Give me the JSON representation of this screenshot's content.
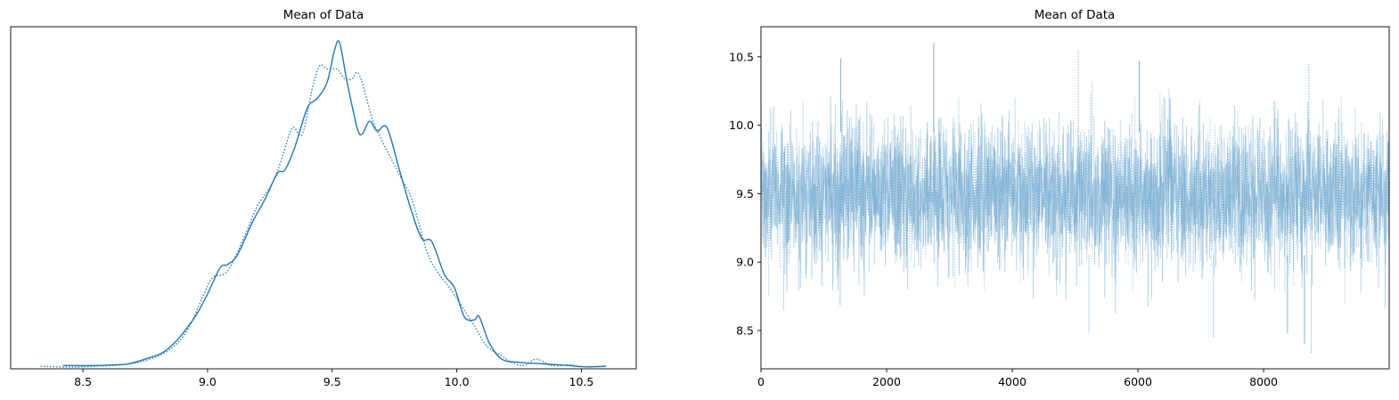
{
  "chart_data": [
    {
      "type": "line",
      "title": "Mean of Data",
      "xlabel": "",
      "ylabel": "",
      "xlim": [
        8.21,
        10.72
      ],
      "ylim": [
        0,
        1.05
      ],
      "y_ticks_visible": false,
      "grid": false,
      "x_ticks": [
        "8.5",
        "9.0",
        "9.5",
        "10.0",
        "10.5"
      ],
      "x_tick_values": [
        8.5,
        9.0,
        9.5,
        10.0,
        10.5
      ],
      "color": "#1f77b4",
      "series": [
        {
          "line_style": "solid",
          "points": [
            [
              8.42,
              0.01
            ],
            [
              8.55,
              0.01
            ],
            [
              8.62,
              0.012
            ],
            [
              8.68,
              0.015
            ],
            [
              8.75,
              0.03
            ],
            [
              8.82,
              0.05
            ],
            [
              8.88,
              0.09
            ],
            [
              8.95,
              0.16
            ],
            [
              9.0,
              0.23
            ],
            [
              9.05,
              0.31
            ],
            [
              9.08,
              0.32
            ],
            [
              9.12,
              0.35
            ],
            [
              9.18,
              0.45
            ],
            [
              9.23,
              0.52
            ],
            [
              9.28,
              0.6
            ],
            [
              9.31,
              0.61
            ],
            [
              9.35,
              0.68
            ],
            [
              9.4,
              0.8
            ],
            [
              9.44,
              0.83
            ],
            [
              9.48,
              0.88
            ],
            [
              9.51,
              0.98
            ],
            [
              9.53,
              1.0
            ],
            [
              9.56,
              0.88
            ],
            [
              9.6,
              0.74
            ],
            [
              9.62,
              0.72
            ],
            [
              9.65,
              0.76
            ],
            [
              9.68,
              0.73
            ],
            [
              9.72,
              0.74
            ],
            [
              9.77,
              0.61
            ],
            [
              9.82,
              0.48
            ],
            [
              9.86,
              0.4
            ],
            [
              9.9,
              0.39
            ],
            [
              9.95,
              0.29
            ],
            [
              9.99,
              0.25
            ],
            [
              10.03,
              0.16
            ],
            [
              10.07,
              0.15
            ],
            [
              10.09,
              0.16
            ],
            [
              10.13,
              0.08
            ],
            [
              10.18,
              0.03
            ],
            [
              10.25,
              0.02
            ],
            [
              10.35,
              0.015
            ],
            [
              10.45,
              0.01
            ],
            [
              10.52,
              0.006
            ],
            [
              10.6,
              0.008
            ]
          ]
        },
        {
          "line_style": "dotted",
          "points": [
            [
              8.33,
              0.008
            ],
            [
              8.45,
              0.005
            ],
            [
              8.55,
              0.008
            ],
            [
              8.65,
              0.012
            ],
            [
              8.75,
              0.025
            ],
            [
              8.85,
              0.06
            ],
            [
              8.92,
              0.12
            ],
            [
              8.98,
              0.22
            ],
            [
              9.02,
              0.28
            ],
            [
              9.08,
              0.3
            ],
            [
              9.15,
              0.41
            ],
            [
              9.2,
              0.5
            ],
            [
              9.26,
              0.57
            ],
            [
              9.3,
              0.65
            ],
            [
              9.34,
              0.74
            ],
            [
              9.38,
              0.72
            ],
            [
              9.42,
              0.86
            ],
            [
              9.45,
              0.93
            ],
            [
              9.48,
              0.92
            ],
            [
              9.52,
              0.92
            ],
            [
              9.55,
              0.89
            ],
            [
              9.58,
              0.89
            ],
            [
              9.6,
              0.91
            ],
            [
              9.62,
              0.88
            ],
            [
              9.66,
              0.77
            ],
            [
              9.7,
              0.7
            ],
            [
              9.74,
              0.64
            ],
            [
              9.78,
              0.58
            ],
            [
              9.82,
              0.52
            ],
            [
              9.88,
              0.36
            ],
            [
              9.92,
              0.3
            ],
            [
              9.97,
              0.25
            ],
            [
              10.03,
              0.18
            ],
            [
              10.08,
              0.12
            ],
            [
              10.12,
              0.07
            ],
            [
              10.18,
              0.04
            ],
            [
              10.22,
              0.02
            ],
            [
              10.27,
              0.01
            ],
            [
              10.32,
              0.03
            ],
            [
              10.38,
              0.01
            ],
            [
              10.45,
              0.012
            ],
            [
              10.5,
              0.005
            ]
          ]
        }
      ]
    },
    {
      "type": "line",
      "title": "Mean of Data",
      "xlabel": "",
      "ylabel": "",
      "xlim": [
        0,
        9999
      ],
      "ylim": [
        8.22,
        10.72
      ],
      "grid": false,
      "x_ticks": [
        "0",
        "2000",
        "4000",
        "6000",
        "8000"
      ],
      "x_tick_values": [
        0,
        2000,
        4000,
        6000,
        8000
      ],
      "y_ticks": [
        "8.5",
        "9.0",
        "9.5",
        "10.0",
        "10.5"
      ],
      "y_tick_values": [
        8.5,
        9.0,
        9.5,
        10.0,
        10.5
      ],
      "color": "#1f77b4",
      "trace_mean": 9.5,
      "trace_sd": 0.26,
      "draws_per_chain": 10000,
      "series": [
        {
          "line_style": "solid",
          "alpha": 0.35
        },
        {
          "line_style": "dotted",
          "alpha": 0.35
        }
      ],
      "notable_spikes": [
        {
          "x": 2750,
          "y": 10.6
        },
        {
          "x": 5050,
          "y": 10.55
        },
        {
          "x": 1270,
          "y": 10.49
        },
        {
          "x": 8720,
          "y": 10.45
        },
        {
          "x": 6020,
          "y": 10.47
        },
        {
          "x": 8760,
          "y": 8.33
        },
        {
          "x": 8650,
          "y": 8.4
        },
        {
          "x": 7200,
          "y": 8.45
        },
        {
          "x": 8380,
          "y": 8.48
        },
        {
          "x": 5220,
          "y": 8.48
        }
      ]
    }
  ]
}
